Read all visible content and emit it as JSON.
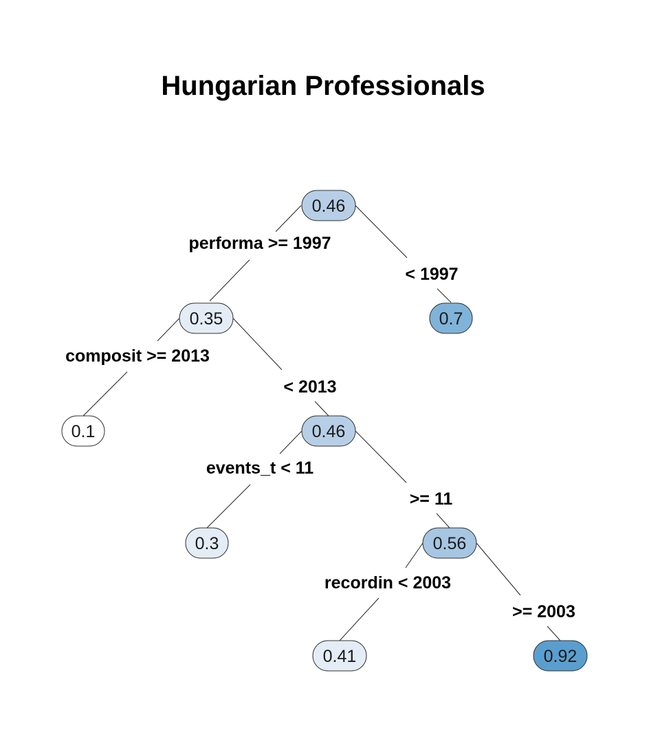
{
  "title": "Hungarian Professionals",
  "colors": {
    "lightest": "#ffffff",
    "light": "#e4edf6",
    "mid": "#b7cfe6",
    "midstrong": "#a6c6e2",
    "strong": "#80b3d9",
    "strongest": "#5a9ecf"
  },
  "nodes": [
    {
      "id": "root",
      "value": "0.46",
      "fill": "mid"
    },
    {
      "id": "n_035",
      "value": "0.35",
      "fill": "light"
    },
    {
      "id": "n_07",
      "value": "0.7",
      "fill": "strong"
    },
    {
      "id": "n_01",
      "value": "0.1",
      "fill": "lightest"
    },
    {
      "id": "n_046b",
      "value": "0.46",
      "fill": "mid"
    },
    {
      "id": "n_03",
      "value": "0.3",
      "fill": "light"
    },
    {
      "id": "n_056",
      "value": "0.56",
      "fill": "midstrong"
    },
    {
      "id": "n_041",
      "value": "0.41",
      "fill": "light"
    },
    {
      "id": "n_092",
      "value": "0.92",
      "fill": "strongest"
    }
  ],
  "splits": [
    {
      "id": "root_left",
      "text": "performa >= 1997"
    },
    {
      "id": "root_right",
      "text": "< 1997"
    },
    {
      "id": "n035_left",
      "text": "composit >= 2013"
    },
    {
      "id": "n035_right",
      "text": "< 2013"
    },
    {
      "id": "n046_left",
      "text": "events_t < 11"
    },
    {
      "id": "n046_right",
      "text": ">= 11"
    },
    {
      "id": "n056_left",
      "text": "recordin < 2003"
    },
    {
      "id": "n056_right",
      "text": ">= 2003"
    }
  ]
}
